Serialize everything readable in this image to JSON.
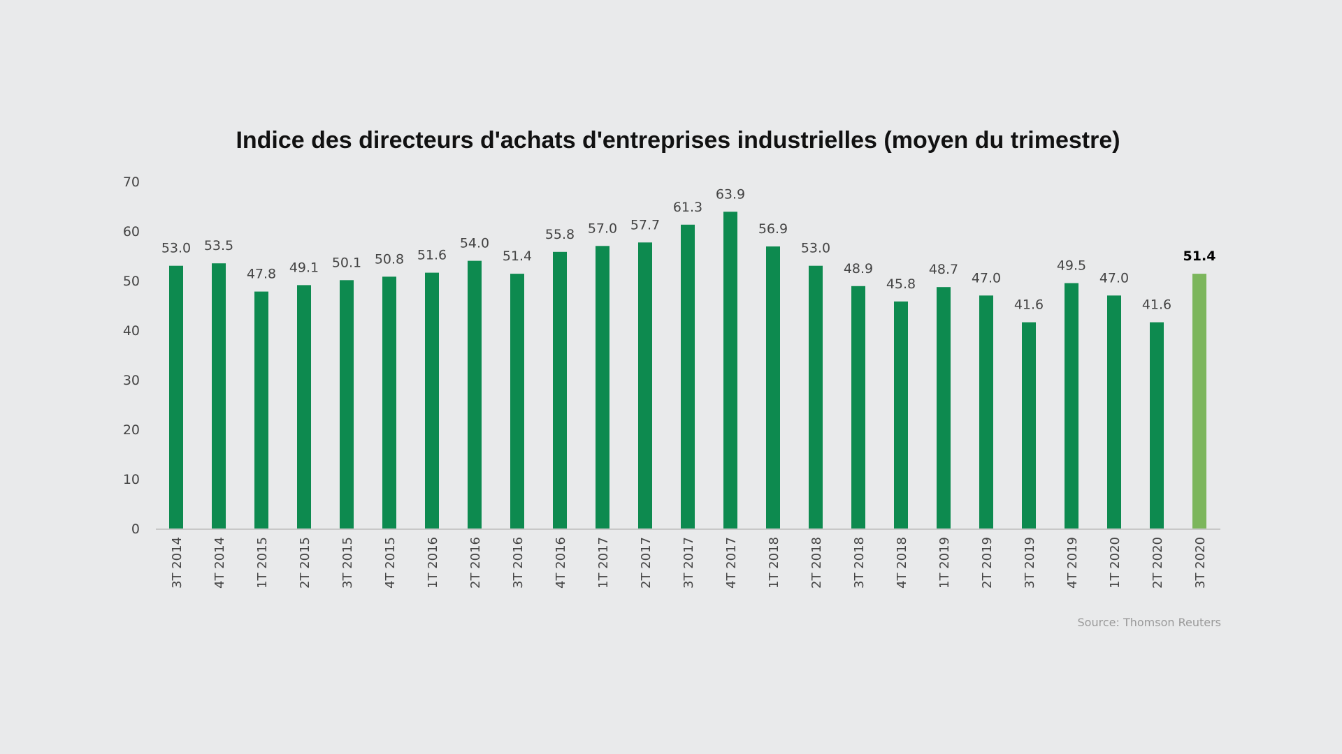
{
  "chart_data": {
    "type": "bar",
    "title": "Indice des directeurs d'achats d'entreprises industrielles (moyen du trimestre)",
    "xlabel": "",
    "ylabel": "",
    "ylim": [
      0,
      70
    ],
    "yticks": [
      0,
      10,
      20,
      30,
      40,
      50,
      60,
      70
    ],
    "categories": [
      "3T 2014",
      "4T 2014",
      "1T 2015",
      "2T 2015",
      "3T 2015",
      "4T 2015",
      "1T 2016",
      "2T 2016",
      "3T 2016",
      "4T 2016",
      "1T 2017",
      "2T 2017",
      "3T 2017",
      "4T 2017",
      "1T 2018",
      "2T 2018",
      "3T 2018",
      "4T 2018",
      "1T 2019",
      "2T 2019",
      "3T 2019",
      "4T 2019",
      "1T 2020",
      "2T 2020",
      "3T 2020"
    ],
    "values": [
      53.0,
      53.5,
      47.8,
      49.1,
      50.1,
      50.8,
      51.6,
      54.0,
      51.4,
      55.8,
      57.0,
      57.7,
      61.3,
      63.9,
      56.9,
      53.0,
      48.9,
      45.8,
      48.7,
      47.0,
      41.6,
      49.5,
      47.0,
      41.6,
      51.4
    ],
    "value_labels": [
      "53.0",
      "53.5",
      "47.8",
      "49.1",
      "50.1",
      "50.8",
      "51.6",
      "54.0",
      "51.4",
      "55.8",
      "57.0",
      "57.7",
      "61.3",
      "63.9",
      "56.9",
      "53.0",
      "48.9",
      "45.8",
      "48.7",
      "47.0",
      "41.6",
      "49.5",
      "47.0",
      "41.6",
      "51.4"
    ],
    "highlight_index": 24,
    "grid": false,
    "legend": "none",
    "source": "Source: Thomson Reuters"
  },
  "colors": {
    "background": "#e9eaeb",
    "bar": "#0d8a4f",
    "bar_highlight": "#7cb65c",
    "axis": "#c8c8c8"
  }
}
